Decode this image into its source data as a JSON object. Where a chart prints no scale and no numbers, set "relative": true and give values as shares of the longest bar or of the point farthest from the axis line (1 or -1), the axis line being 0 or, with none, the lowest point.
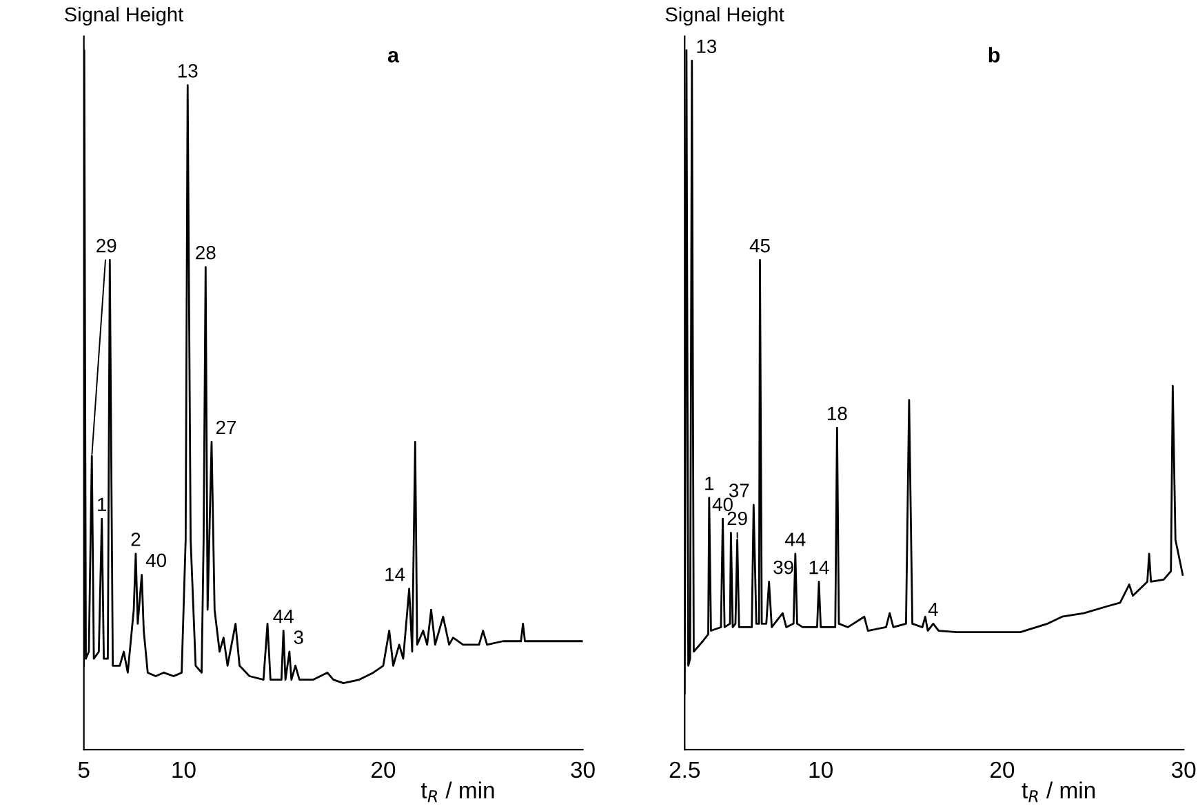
{
  "chart_data": [
    {
      "type": "line",
      "title": "a",
      "ylabel": "Signal Height",
      "xlabel": "t$_{R}$ / min",
      "relative": true,
      "xlim": [
        5,
        30
      ],
      "xticks": [
        5,
        10,
        20,
        30
      ],
      "grid": false,
      "legend": false,
      "series": [
        {
          "color": "#000000",
          "x": [
            5.0,
            5.02,
            5.1,
            5.25,
            5.4,
            5.5,
            5.75,
            5.9,
            6.0,
            6.2,
            6.3,
            6.45,
            6.8,
            7.0,
            7.2,
            7.5,
            7.6,
            7.7,
            7.9,
            8.0,
            8.2,
            8.6,
            9.0,
            9.5,
            9.9,
            10.1,
            10.2,
            10.35,
            10.6,
            10.9,
            11.0,
            11.1,
            11.2,
            11.4,
            11.55,
            11.8,
            12.0,
            12.2,
            12.6,
            12.8,
            13.3,
            14.0,
            14.2,
            14.35,
            14.9,
            15.0,
            15.1,
            15.3,
            15.4,
            15.6,
            15.8,
            16.5,
            17.2,
            17.5,
            18.0,
            18.8,
            19.5,
            20.0,
            20.3,
            20.5,
            20.8,
            21.0,
            21.3,
            21.45,
            21.6,
            21.7,
            22.0,
            22.2,
            22.4,
            22.6,
            23.0,
            23.3,
            23.5,
            24.0,
            24.8,
            25.0,
            25.2,
            26.0,
            26.9,
            27.0,
            27.1,
            28.0,
            29.5,
            30.0
          ],
          "values": [
            0.12,
            1.0,
            0.13,
            0.14,
            0.42,
            0.13,
            0.14,
            0.33,
            0.13,
            0.13,
            0.7,
            0.12,
            0.12,
            0.14,
            0.11,
            0.2,
            0.28,
            0.18,
            0.25,
            0.17,
            0.11,
            0.105,
            0.11,
            0.105,
            0.11,
            0.3,
            0.95,
            0.3,
            0.12,
            0.11,
            0.3,
            0.69,
            0.2,
            0.44,
            0.2,
            0.14,
            0.16,
            0.12,
            0.18,
            0.12,
            0.105,
            0.1,
            0.18,
            0.1,
            0.1,
            0.17,
            0.1,
            0.14,
            0.1,
            0.12,
            0.1,
            0.1,
            0.11,
            0.1,
            0.095,
            0.1,
            0.11,
            0.12,
            0.17,
            0.12,
            0.15,
            0.13,
            0.23,
            0.14,
            0.44,
            0.15,
            0.17,
            0.15,
            0.2,
            0.15,
            0.19,
            0.15,
            0.16,
            0.15,
            0.15,
            0.17,
            0.15,
            0.155,
            0.155,
            0.18,
            0.155,
            0.155,
            0.155,
            0.155
          ]
        }
      ],
      "annotations": [
        {
          "text": "29",
          "x": 5.4,
          "y": 0.42
        },
        {
          "text": "1",
          "x": 5.9,
          "y": 0.33
        },
        {
          "text": "2",
          "x": 7.6,
          "y": 0.28
        },
        {
          "text": "40",
          "x": 7.9,
          "y": 0.25
        },
        {
          "text": "13",
          "x": 10.2,
          "y": 0.95
        },
        {
          "text": "28",
          "x": 11.1,
          "y": 0.69
        },
        {
          "text": "27",
          "x": 11.4,
          "y": 0.44
        },
        {
          "text": "44",
          "x": 15.0,
          "y": 0.17
        },
        {
          "text": "3",
          "x": 15.3,
          "y": 0.14
        },
        {
          "text": "14",
          "x": 21.3,
          "y": 0.23
        }
      ]
    },
    {
      "type": "line",
      "title": "b",
      "ylabel": "Signal Height",
      "xlabel": "t$_{R}$ / min",
      "relative": true,
      "xlim": [
        2.5,
        30
      ],
      "xticks": [
        2.5,
        10,
        20,
        30
      ],
      "grid": false,
      "legend": false,
      "series": [
        {
          "color": "#000000",
          "x": [
            2.5,
            2.6,
            2.7,
            2.8,
            2.9,
            3.0,
            3.5,
            3.8,
            3.85,
            3.95,
            4.5,
            4.6,
            4.7,
            5.0,
            5.05,
            5.15,
            5.3,
            5.4,
            5.5,
            6.2,
            6.3,
            6.45,
            6.6,
            6.65,
            6.75,
            7.0,
            7.15,
            7.3,
            7.9,
            8.1,
            8.5,
            8.6,
            8.7,
            9.0,
            9.8,
            9.9,
            10.0,
            10.8,
            10.9,
            11.0,
            11.5,
            12.4,
            12.6,
            13.6,
            13.8,
            14.0,
            14.7,
            14.87,
            15.05,
            15.6,
            15.76,
            15.9,
            16.2,
            16.5,
            17.5,
            19.0,
            21.0,
            22.5,
            23.3,
            24.5,
            25.8,
            26.5,
            27.0,
            27.2,
            28.0,
            28.1,
            28.2,
            28.9,
            29.3,
            29.4,
            29.55,
            29.95
          ],
          "values": [
            0.08,
            1.0,
            0.12,
            0.13,
            0.985,
            0.14,
            0.155,
            0.165,
            0.36,
            0.17,
            0.175,
            0.33,
            0.175,
            0.18,
            0.31,
            0.175,
            0.18,
            0.3,
            0.175,
            0.175,
            0.35,
            0.18,
            0.18,
            0.7,
            0.18,
            0.18,
            0.24,
            0.175,
            0.195,
            0.175,
            0.18,
            0.28,
            0.18,
            0.175,
            0.175,
            0.24,
            0.175,
            0.175,
            0.46,
            0.18,
            0.175,
            0.19,
            0.17,
            0.175,
            0.195,
            0.175,
            0.18,
            0.5,
            0.18,
            0.175,
            0.19,
            0.17,
            0.18,
            0.17,
            0.168,
            0.168,
            0.168,
            0.18,
            0.19,
            0.195,
            0.205,
            0.21,
            0.236,
            0.22,
            0.24,
            0.28,
            0.24,
            0.243,
            0.255,
            0.52,
            0.3,
            0.25
          ]
        }
      ],
      "annotations": [
        {
          "text": "13",
          "x": 2.9,
          "y": 0.985
        },
        {
          "text": "1",
          "x": 3.85,
          "y": 0.36
        },
        {
          "text": "40",
          "x": 4.6,
          "y": 0.33
        },
        {
          "text": "29",
          "x": 5.4,
          "y": 0.3
        },
        {
          "text": "37",
          "x": 6.3,
          "y": 0.35
        },
        {
          "text": "45",
          "x": 6.65,
          "y": 0.7
        },
        {
          "text": "39",
          "x": 7.15,
          "y": 0.24
        },
        {
          "text": "44",
          "x": 8.6,
          "y": 0.28
        },
        {
          "text": "14",
          "x": 9.9,
          "y": 0.24
        },
        {
          "text": "18",
          "x": 10.9,
          "y": 0.46
        },
        {
          "text": "4",
          "x": 16.2,
          "y": 0.18
        }
      ]
    }
  ]
}
